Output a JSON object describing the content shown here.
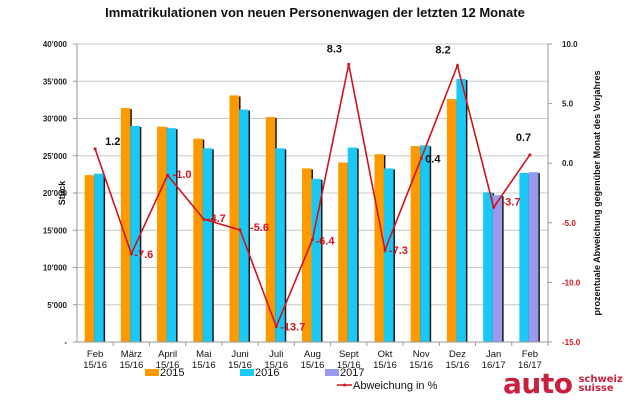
{
  "chart_data": {
    "type": "bar",
    "title": "Immatrikulationen von neuen Personenwagen der letzten 12 Monate",
    "xlabel": "",
    "ylabel": "Stück",
    "y2label": "prozentuale Abweichung gegenüber Monat des Vorjahres",
    "ylim": [
      0,
      40000
    ],
    "y2lim": [
      -15,
      10
    ],
    "yticks": [
      "-",
      "5'000",
      "10'000",
      "15'000",
      "20'000",
      "25'000",
      "30'000",
      "35'000",
      "40'000"
    ],
    "y2ticks": [
      "-15.0",
      "-10.0",
      "-5.0",
      "0.0",
      "5.0",
      "10.0"
    ],
    "grid": true,
    "legend_position": "bottom",
    "categories": [
      [
        "Feb",
        "15/16"
      ],
      [
        "März",
        "15/16"
      ],
      [
        "April",
        "15/16"
      ],
      [
        "Mai",
        "15/16"
      ],
      [
        "Juni",
        "15/16"
      ],
      [
        "Juli",
        "15/16"
      ],
      [
        "Aug",
        "15/16"
      ],
      [
        "Sept",
        "15/16"
      ],
      [
        "Okt",
        "15/16"
      ],
      [
        "Nov",
        "15/16"
      ],
      [
        "Dez",
        "15/16"
      ],
      [
        "Jan",
        "16/17"
      ],
      [
        "Feb",
        "16/17"
      ]
    ],
    "series": [
      {
        "name": "2015",
        "type": "bar",
        "color": "#ff9900",
        "values": [
          22400,
          31400,
          28900,
          27300,
          33100,
          30200,
          23300,
          24100,
          25200,
          26300,
          32600,
          null,
          null
        ]
      },
      {
        "name": "2016",
        "type": "bar",
        "color": "#19c8f5",
        "values": [
          22600,
          29000,
          28700,
          26000,
          31200,
          26000,
          21900,
          26100,
          23300,
          26400,
          35300,
          20100,
          22700
        ]
      },
      {
        "name": "2017",
        "type": "bar",
        "color": "#9999ee",
        "values": [
          null,
          null,
          null,
          null,
          null,
          null,
          null,
          null,
          null,
          null,
          null,
          19700,
          22800
        ]
      },
      {
        "name": "Abweichung in %",
        "type": "line",
        "axis": "right",
        "color": "#d0141e",
        "values": [
          1.2,
          -7.6,
          -1.0,
          -4.7,
          -5.6,
          -13.7,
          -6.4,
          8.3,
          -7.3,
          0.4,
          8.2,
          -3.7,
          0.7
        ],
        "labels": [
          "1.2",
          "-7.6",
          "-1.0",
          "-4.7",
          "-5.6",
          "-13.7",
          "-6.4",
          "8.3",
          "-7.3",
          "0.4",
          "8.2",
          "-3.7",
          "0.7"
        ]
      }
    ]
  },
  "logo": {
    "main": "auto",
    "line1": "schweiz",
    "line2": "suisse"
  }
}
